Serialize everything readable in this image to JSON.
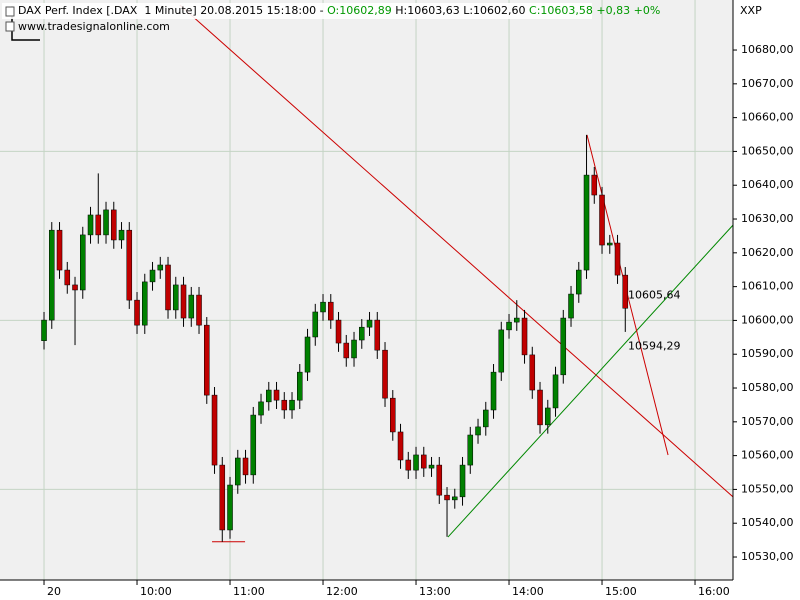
{
  "chart_data": {
    "type": "candlestick",
    "header": {
      "title": "DAX Perf. Index [.DAX  1 Minute]",
      "datetime": "20.08.2015 15:18:00",
      "separator": "-",
      "open": "O:10602,89",
      "high": "H:10603,63",
      "low": "L:10602,60",
      "close": "C:10603,58",
      "change": "+0,83",
      "change_pct": "+0%",
      "up_color": "#009900"
    },
    "source": "www.tradesignalonline.com",
    "axis_label": "XXP",
    "up_color": "#008000",
    "down_color": "#c00000",
    "xlim": [
      511.6,
      984.5
    ],
    "ylim": [
      10523.2,
      10694.8
    ],
    "xticks": [
      {
        "value": 540,
        "label": "20"
      },
      {
        "value": 600,
        "label": "10:00"
      },
      {
        "value": 660,
        "label": "11:00"
      },
      {
        "value": 720,
        "label": "12:00"
      },
      {
        "value": 780,
        "label": "13:00"
      },
      {
        "value": 840,
        "label": "14:00"
      },
      {
        "value": 900,
        "label": "15:00"
      },
      {
        "value": 960,
        "label": "16:00"
      }
    ],
    "yticks": [
      {
        "value": 10530,
        "label": "10530,00"
      },
      {
        "value": 10540,
        "label": "10540,00"
      },
      {
        "value": 10550,
        "label": "10550,00"
      },
      {
        "value": 10560,
        "label": "10560,00"
      },
      {
        "value": 10570,
        "label": "10570,00"
      },
      {
        "value": 10580,
        "label": "10580,00"
      },
      {
        "value": 10590,
        "label": "10590,00"
      },
      {
        "value": 10600,
        "label": "10600,00"
      },
      {
        "value": 10610,
        "label": "10610,00"
      },
      {
        "value": 10620,
        "label": "10620,00"
      },
      {
        "value": 10630,
        "label": "10630,00"
      },
      {
        "value": 10640,
        "label": "10640,00"
      },
      {
        "value": 10650,
        "label": "10650,00"
      },
      {
        "value": 10660,
        "label": "10660,00"
      },
      {
        "value": 10670,
        "label": "10670,00"
      },
      {
        "value": 10680,
        "label": "10680,00"
      }
    ],
    "ygrid": [
      10550,
      10600,
      10650
    ],
    "grid": true,
    "x": [
      540,
      545,
      550,
      555,
      560,
      565,
      570,
      575,
      580,
      585,
      590,
      595,
      600,
      605,
      610,
      615,
      620,
      625,
      630,
      635,
      640,
      645,
      650,
      655,
      660,
      665,
      670,
      675,
      680,
      685,
      690,
      695,
      700,
      705,
      710,
      715,
      720,
      725,
      730,
      735,
      740,
      745,
      750,
      755,
      760,
      765,
      770,
      775,
      780,
      785,
      790,
      795,
      800,
      805,
      810,
      815,
      820,
      825,
      830,
      835,
      840,
      845,
      850,
      855,
      860,
      865,
      870,
      875,
      880,
      885,
      890,
      895,
      900,
      905,
      910,
      915
    ],
    "open": [
      10594.0,
      10600.1,
      10626.7,
      10614.9,
      10610.5,
      10609.0,
      10625.3,
      10631.2,
      10625.3,
      10632.7,
      10623.8,
      10626.7,
      10606.0,
      10598.6,
      10611.4,
      10614.9,
      10616.4,
      10603.1,
      10610.5,
      10600.7,
      10607.5,
      10598.6,
      10577.9,
      10557.2,
      10538.0,
      10551.3,
      10559.3,
      10554.3,
      10572.0,
      10575.9,
      10579.4,
      10576.4,
      10573.5,
      10576.4,
      10584.7,
      10595.1,
      10602.5,
      10605.4,
      10600.1,
      10593.3,
      10588.9,
      10594.2,
      10598.0,
      10600.1,
      10591.2,
      10577.0,
      10567.0,
      10558.7,
      10555.7,
      10560.2,
      10556.3,
      10557.2,
      10548.3,
      10546.9,
      10547.8,
      10557.2,
      10566.1,
      10568.5,
      10573.5,
      10584.7,
      10597.2,
      10599.5,
      10600.7,
      10589.8,
      10579.4,
      10569.1,
      10574.1,
      10583.9,
      10600.7,
      10607.8,
      10614.9,
      10643.0,
      10637.1,
      10622.3,
      10622.9,
      10613.4
    ],
    "high": [
      10602.5,
      10629.1,
      10629.1,
      10617.3,
      10612.9,
      10627.7,
      10633.6,
      10643.5,
      10635.1,
      10635.1,
      10629.1,
      10629.1,
      10608.4,
      10613.8,
      10617.3,
      10618.8,
      10618.8,
      10612.9,
      10612.9,
      10609.9,
      10609.9,
      10601.0,
      10580.3,
      10559.6,
      10553.7,
      10561.7,
      10561.7,
      10574.4,
      10578.3,
      10581.8,
      10581.8,
      10578.8,
      10578.8,
      10587.1,
      10597.5,
      10604.9,
      10607.8,
      10607.8,
      10602.5,
      10595.7,
      10596.6,
      10600.4,
      10602.5,
      10602.5,
      10593.6,
      10579.4,
      10569.4,
      10561.1,
      10562.6,
      10562.6,
      10559.6,
      10559.6,
      10550.7,
      10550.2,
      10559.6,
      10568.5,
      10570.9,
      10575.9,
      10587.1,
      10599.6,
      10601.9,
      10606.0,
      10603.1,
      10592.2,
      10581.8,
      10576.5,
      10586.3,
      10603.1,
      10610.2,
      10617.3,
      10654.9,
      10645.4,
      10639.5,
      10625.3,
      10625.3,
      10615.8
    ],
    "low": [
      10591.4,
      10597.5,
      10612.3,
      10607.9,
      10592.7,
      10606.4,
      10622.7,
      10622.7,
      10622.7,
      10621.2,
      10621.2,
      10603.4,
      10596.0,
      10596.0,
      10608.8,
      10612.3,
      10600.5,
      10600.5,
      10598.1,
      10598.1,
      10596.0,
      10575.3,
      10554.6,
      10534.5,
      10535.4,
      10548.7,
      10551.7,
      10551.7,
      10569.4,
      10573.3,
      10573.8,
      10570.9,
      10570.9,
      10573.8,
      10582.1,
      10592.5,
      10599.9,
      10597.5,
      10590.7,
      10586.3,
      10586.3,
      10591.6,
      10595.4,
      10588.6,
      10574.4,
      10564.4,
      10556.1,
      10553.1,
      10553.1,
      10553.7,
      10553.7,
      10545.7,
      10536.0,
      10544.3,
      10545.2,
      10554.6,
      10563.5,
      10565.9,
      10570.9,
      10582.1,
      10594.6,
      10596.9,
      10587.2,
      10576.8,
      10566.5,
      10566.5,
      10571.5,
      10581.3,
      10598.1,
      10605.2,
      10612.3,
      10634.5,
      10619.7,
      10619.7,
      10610.8,
      10596.6
    ],
    "close": [
      10600.1,
      10626.7,
      10614.9,
      10610.5,
      10609.0,
      10625.3,
      10631.2,
      10625.3,
      10632.7,
      10623.8,
      10626.7,
      10606.0,
      10598.6,
      10611.4,
      10614.9,
      10616.4,
      10603.1,
      10610.5,
      10600.7,
      10607.5,
      10598.6,
      10577.9,
      10557.2,
      10538.0,
      10551.3,
      10559.3,
      10554.3,
      10572.0,
      10575.9,
      10579.4,
      10576.4,
      10573.5,
      10576.4,
      10584.7,
      10595.1,
      10602.5,
      10605.4,
      10600.1,
      10593.3,
      10588.9,
      10594.2,
      10598.0,
      10600.1,
      10591.2,
      10577.0,
      10567.0,
      10558.7,
      10555.7,
      10560.2,
      10556.3,
      10557.2,
      10548.3,
      10546.9,
      10547.8,
      10557.2,
      10566.1,
      10568.5,
      10573.5,
      10584.7,
      10597.2,
      10599.5,
      10600.7,
      10589.8,
      10579.4,
      10569.1,
      10574.1,
      10583.9,
      10600.7,
      10607.8,
      10614.9,
      10643.0,
      10637.1,
      10622.3,
      10622.9,
      10613.4,
      10603.6
    ],
    "trendlines": [
      {
        "color": "#cc0000",
        "x": [
          627.7,
          984.5
        ],
        "y": [
          10693.3,
          10547.8
        ]
      },
      {
        "color": "#008800",
        "x": [
          800.6,
          984.5
        ],
        "y": [
          10535.9,
          10628.2
        ]
      },
      {
        "color": "#cc0000",
        "x": [
          890.3,
          942.6
        ],
        "y": [
          10654.9,
          10560.2
        ]
      },
      {
        "color": "#cc0000",
        "x": [
          648.4,
          669.7
        ],
        "y": [
          10534.5,
          10534.5
        ]
      }
    ],
    "line_labels": [
      {
        "label": "10605,64",
        "value": 10605.64,
        "color": "#cc0000"
      },
      {
        "label": "10594,29",
        "value": 10594.29,
        "color": "#008800"
      }
    ]
  }
}
